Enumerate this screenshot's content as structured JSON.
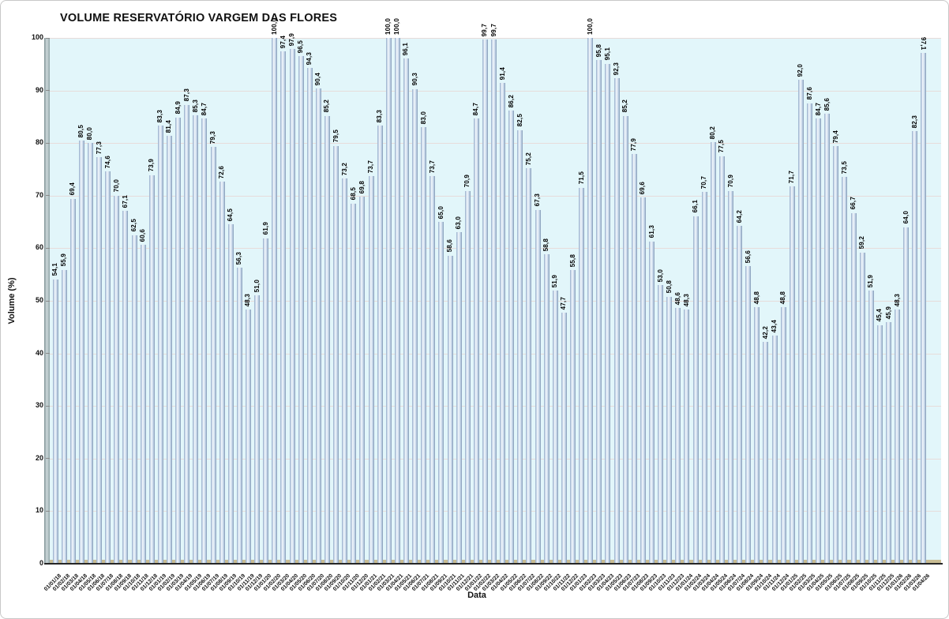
{
  "page": {
    "background": "#ffffff",
    "border_color": "#c8c8c8"
  },
  "chart_data": {
    "type": "bar",
    "title": "VOLUME RESERVATÓRIO VARGEM DAS FLORES",
    "xlabel": "Data",
    "ylabel": "Volume (%)",
    "ylim": [
      0,
      100
    ],
    "yticks": [
      0,
      10,
      20,
      30,
      40,
      50,
      60,
      70,
      80,
      90,
      100
    ],
    "grid": true,
    "legend": false,
    "decimal_separator": ",",
    "plot_bg": "#e2f6fa",
    "gridline_color": "#e7dcda",
    "bar_color": "#b9cde4",
    "categories": [
      "01/01/18",
      "01/02/18",
      "01/03/18",
      "01/04/18",
      "01/05/18",
      "01/06/18",
      "01/07/18",
      "01/08/18",
      "01/09/18",
      "01/10/18",
      "01/11/18",
      "01/12/18",
      "01/01/19",
      "01/02/19",
      "01/03/19",
      "01/04/19",
      "01/05/19",
      "01/06/19",
      "01/07/19",
      "01/08/19",
      "01/09/19",
      "01/10/19",
      "01/11/19",
      "01/12/19",
      "01/01/20",
      "01/02/20",
      "01/03/20",
      "01/04/20",
      "01/05/20",
      "01/06/20",
      "01/07/20",
      "01/08/20",
      "01/09/20",
      "01/10/20",
      "01/11/20",
      "01/12/20",
      "01/01/21",
      "01/02/21",
      "01/03/21",
      "01/04/21",
      "01/05/21",
      "01/06/21",
      "01/07/21",
      "01/08/21",
      "01/09/21",
      "01/10/21",
      "01/11/21",
      "01/12/21",
      "01/01/22",
      "01/02/22",
      "01/03/22",
      "01/04/22",
      "01/05/22",
      "01/06/22",
      "01/07/22",
      "01/08/22",
      "01/09/22",
      "01/10/22",
      "01/11/22",
      "01/12/22",
      "01/01/23",
      "01/02/23",
      "01/03/23",
      "01/04/23",
      "01/05/23",
      "01/06/23",
      "01/07/23",
      "01/08/23",
      "01/09/23",
      "01/10/23",
      "01/11/23",
      "01/12/23",
      "01/01/24",
      "01/02/24",
      "01/03/24",
      "01/04/24",
      "01/05/24",
      "01/06/24",
      "01/07/24",
      "01/08/24",
      "01/09/24",
      "01/10/24",
      "01/11/24",
      "01/12/24",
      "01/01/25",
      "01/02/25",
      "01/03/25",
      "01/04/25",
      "01/05/25",
      "01/06/25",
      "01/07/25",
      "01/08/25",
      "01/09/25",
      "01/10/25",
      "01/11/25",
      "01/12/25",
      "01/01/26",
      "01/02/26",
      "01/03/26",
      "01/04/26"
    ],
    "values": [
      54.1,
      55.9,
      69.4,
      80.5,
      80.0,
      77.3,
      74.6,
      70.0,
      67.1,
      62.5,
      60.6,
      73.9,
      83.3,
      81.4,
      84.9,
      87.3,
      85.3,
      84.7,
      79.3,
      72.6,
      64.5,
      56.3,
      48.3,
      51.0,
      61.9,
      100.0,
      97.4,
      97.9,
      96.5,
      94.3,
      90.4,
      85.2,
      79.5,
      73.2,
      68.5,
      69.8,
      73.7,
      83.3,
      100.0,
      100.0,
      96.1,
      90.3,
      83.0,
      73.7,
      65.0,
      58.6,
      63.0,
      70.9,
      84.7,
      99.7,
      99.7,
      91.4,
      86.2,
      82.5,
      75.2,
      67.3,
      58.8,
      51.9,
      47.7,
      55.8,
      71.5,
      100.0,
      95.8,
      95.1,
      92.3,
      85.2,
      77.9,
      69.6,
      61.3,
      53.0,
      50.8,
      48.6,
      48.3,
      66.1,
      70.7,
      80.2,
      77.5,
      70.9,
      64.2,
      56.6,
      48.8,
      42.2,
      43.4,
      48.8,
      71.7,
      92.0,
      87.6,
      84.7,
      85.6,
      79.4,
      73.5,
      66.7,
      59.2,
      51.9,
      45.4,
      45.9,
      48.3,
      64.0,
      82.3,
      97.1
    ]
  }
}
